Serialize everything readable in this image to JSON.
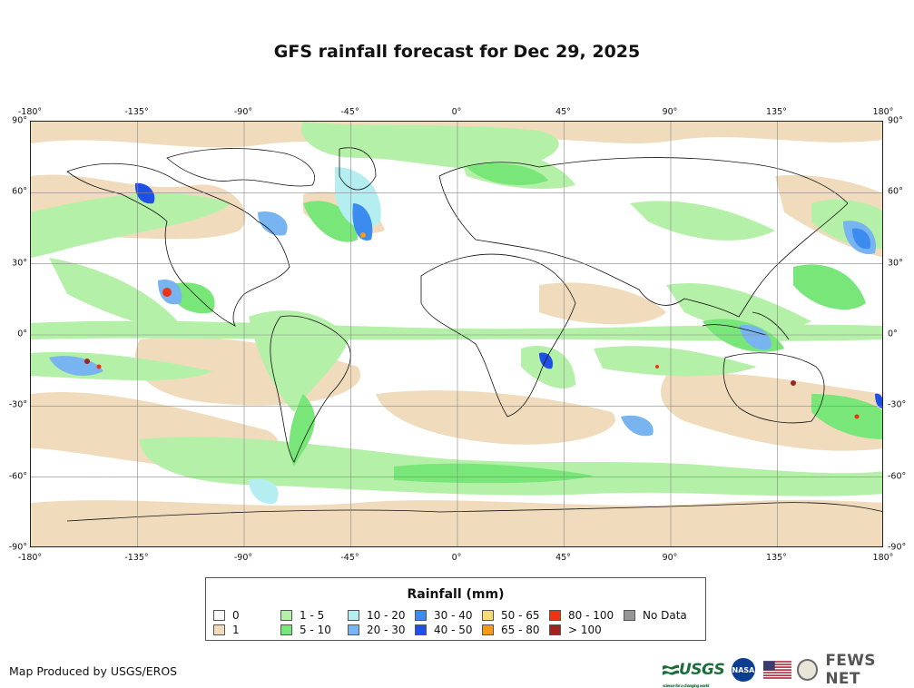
{
  "title": "GFS rainfall forecast for Dec 29, 2025",
  "axes": {
    "longitude_labels": [
      "-180°",
      "-135°",
      "-90°",
      "-45°",
      "0°",
      "45°",
      "90°",
      "135°",
      "180°"
    ],
    "latitude_labels": [
      "90°",
      "60°",
      "30°",
      "0°",
      "-30°",
      "-60°",
      "-90°"
    ]
  },
  "legend": {
    "title": "Rainfall (mm)",
    "items": [
      {
        "label": "0",
        "color": "#ffffff"
      },
      {
        "label": "1",
        "color": "#f0dcbc"
      },
      {
        "label": "1 - 5",
        "color": "#b4f0a8"
      },
      {
        "label": "5 - 10",
        "color": "#78e678"
      },
      {
        "label": "10 - 20",
        "color": "#b4eef0"
      },
      {
        "label": "20 - 30",
        "color": "#78b4f0"
      },
      {
        "label": "30 - 40",
        "color": "#3c8cf0"
      },
      {
        "label": "40 - 50",
        "color": "#1e50e6"
      },
      {
        "label": "50 - 65",
        "color": "#f5dc78"
      },
      {
        "label": "65 - 80",
        "color": "#f59b14"
      },
      {
        "label": "80 - 100",
        "color": "#f03214"
      },
      {
        "label": "> 100",
        "color": "#a0241e"
      },
      {
        "label": "No Data",
        "color": "#969696"
      }
    ]
  },
  "footer": {
    "credit": "Map Produced by USGS/EROS",
    "logos": {
      "usgs": "USGS",
      "usgs_tagline": "science for a changing world",
      "nasa": "NASA",
      "fews": "FEWS NET"
    }
  }
}
